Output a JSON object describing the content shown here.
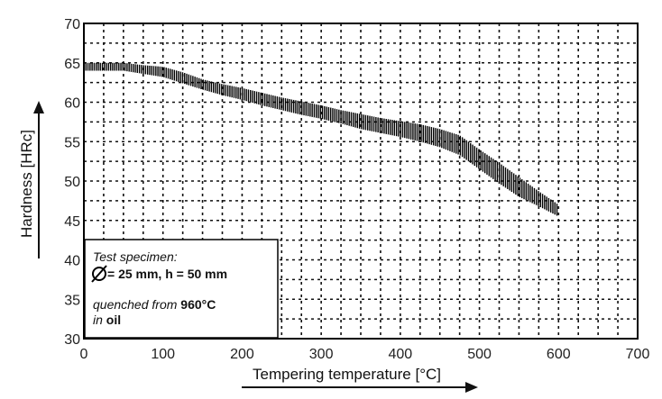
{
  "chart_data": {
    "type": "area",
    "title": "",
    "xlabel": "Tempering temperature [°C]",
    "ylabel": "Hardness [HRc]",
    "xlim": [
      0,
      700
    ],
    "ylim": [
      30,
      70
    ],
    "xticks": [
      0,
      100,
      200,
      300,
      400,
      500,
      600,
      700
    ],
    "yticks": [
      30,
      35,
      40,
      45,
      50,
      55,
      60,
      65,
      70
    ],
    "grid": "dashed, 25 °C × 2.5 HRc",
    "series": [
      {
        "x": [
          0,
          25,
          50,
          75,
          100,
          125,
          150,
          175,
          200,
          225,
          250,
          275,
          300,
          325,
          350,
          375,
          400,
          425,
          450,
          475,
          500,
          525,
          550,
          575,
          600
        ],
        "upper": [
          65,
          65,
          65,
          64.7,
          64.5,
          63.8,
          62.9,
          62.3,
          61.8,
          61.2,
          60.6,
          60.1,
          59.6,
          59.0,
          58.5,
          58.0,
          57.6,
          57.2,
          56.6,
          55.8,
          54.0,
          52.3,
          50.5,
          48.7,
          47.0
        ],
        "lower": [
          64,
          64,
          64,
          63.6,
          63.2,
          62.4,
          61.6,
          60.9,
          60.3,
          59.6,
          59.0,
          58.4,
          57.9,
          57.3,
          56.6,
          56.1,
          55.6,
          55.0,
          54.3,
          53.3,
          51.5,
          49.7,
          48.0,
          46.8,
          45.5
        ]
      }
    ]
  },
  "legend_box": {
    "line1": "Test specimen:",
    "line2_value": "= 25 mm, h = 50 mm",
    "line3_prefix": "quenched from ",
    "line3_value": "960°C",
    "line4_prefix": "in ",
    "line4_value": "oil"
  },
  "colors": {
    "frame": "#000000",
    "grid": "#111111",
    "band": "#000000",
    "arrow": "#111111"
  }
}
